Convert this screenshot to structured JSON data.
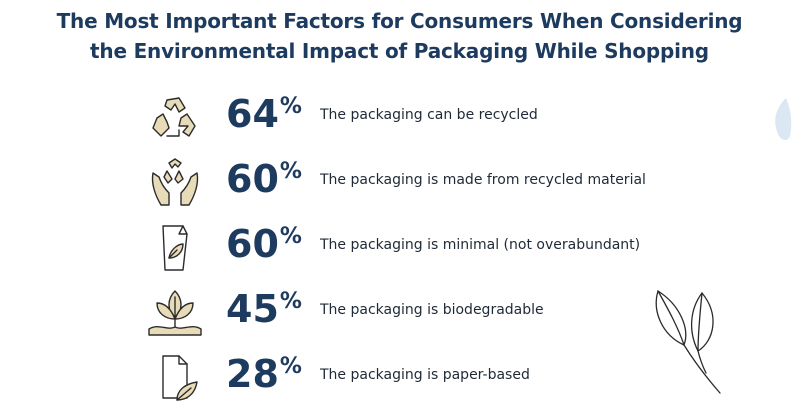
{
  "title_lines": [
    "The Most Important Factors for Consumers When Considering",
    "the Environmental Impact of Packaging While Shopping"
  ],
  "colors": {
    "title": "#1d3a5f",
    "number": "#1d3a5f",
    "icon_fill": "#e8dcb8",
    "icon_stroke": "#2b2b2b",
    "accent_drop": "#dbe8f4"
  },
  "chart_data": {
    "type": "table",
    "title": "The Most Important Factors for Consumers When Considering the Environmental Impact of Packaging While Shopping",
    "unit": "%",
    "categories": [
      "The packaging can be recycled",
      "The packaging is made from recycled material",
      "The packaging is minimal (not overabundant)",
      "The packaging is biodegradable",
      "The packaging is paper-based"
    ],
    "values": [
      64,
      60,
      60,
      45,
      28
    ],
    "icons": [
      "recycle-icon",
      "hands-recycle-icon",
      "minimal-package-icon",
      "sprout-icon",
      "paper-leaf-icon"
    ]
  }
}
